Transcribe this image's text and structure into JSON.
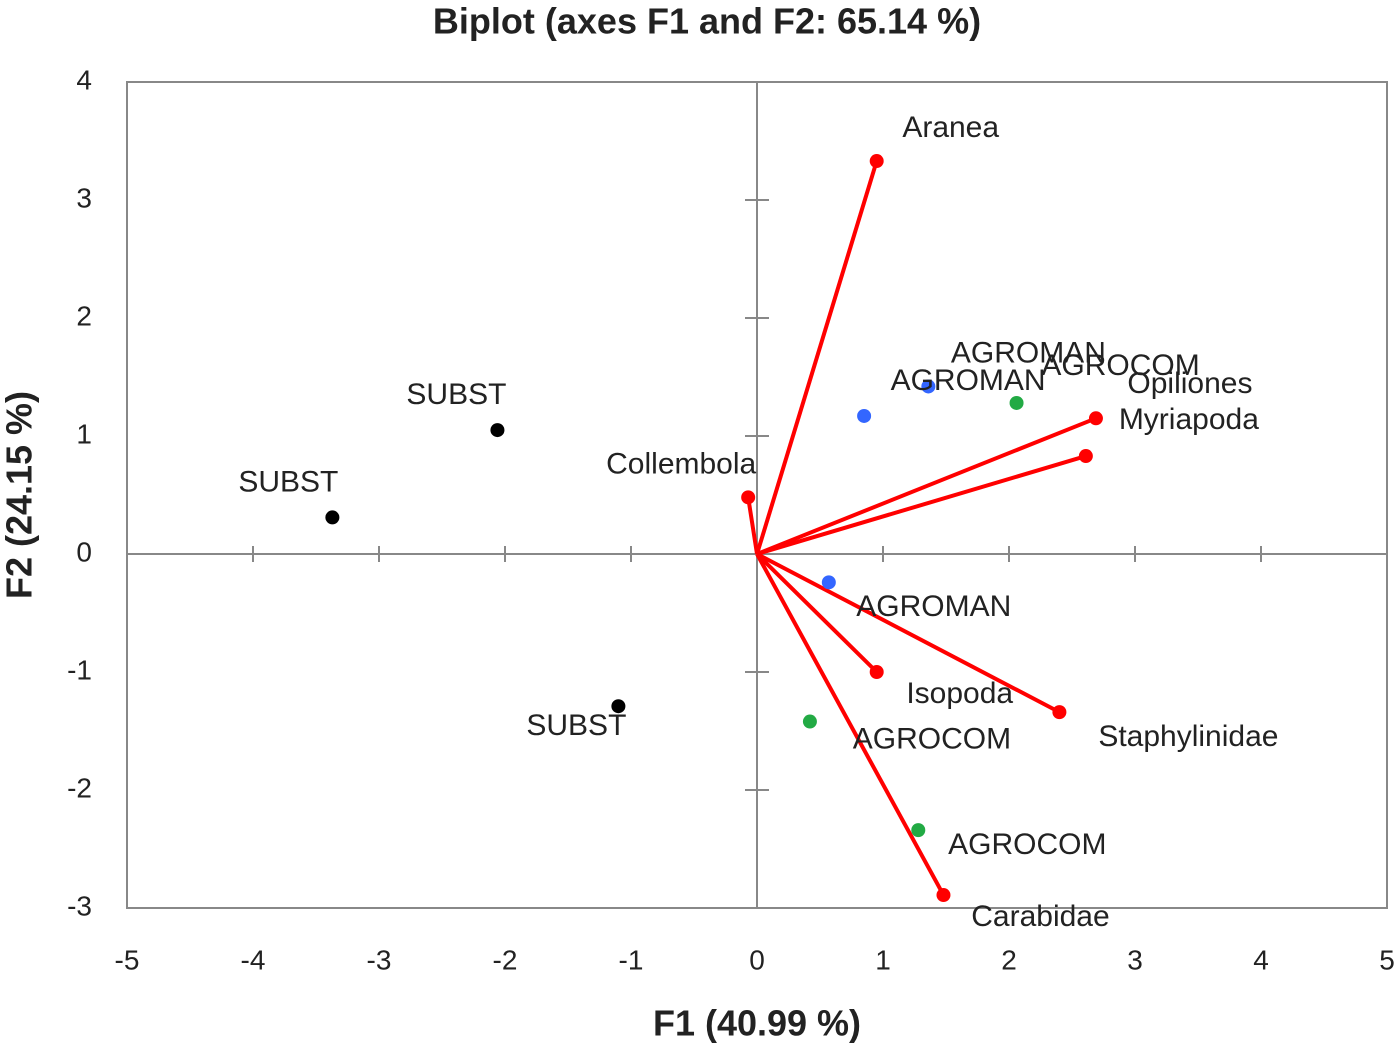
{
  "chart_data": {
    "type": "biplot",
    "title": "Biplot (axes F1 and F2: 65.14 %)",
    "x_label": "F1 (40.99 %)",
    "y_label": "F2 (24.15 %)",
    "xlim": [
      -5,
      5
    ],
    "ylim": [
      -3,
      4
    ],
    "xticks": [
      -5,
      -4,
      -3,
      -2,
      -1,
      0,
      1,
      2,
      3,
      4,
      5
    ],
    "yticks": [
      -3,
      -2,
      -1,
      0,
      1,
      2,
      3,
      4
    ],
    "series": [
      {
        "color": "#000000",
        "labels": [
          "SUBST",
          "SUBST",
          "SUBST"
        ],
        "x": [
          -3.37,
          -2.06,
          -1.1
        ],
        "values": [
          0.31,
          1.05,
          -1.29
        ]
      },
      {
        "color": "#3366ff",
        "labels": [
          "AGROMAN",
          "AGROMAN",
          "AGROMAN"
        ],
        "x": [
          1.36,
          0.85,
          0.57
        ],
        "values": [
          1.42,
          1.17,
          -0.24
        ]
      },
      {
        "color": "#22aa44",
        "labels": [
          "AGROCOM",
          "AGROCOM",
          "AGROCOM"
        ],
        "x": [
          2.06,
          0.42,
          1.28
        ],
        "values": [
          1.28,
          -1.42,
          -2.34
        ]
      },
      {
        "color": "#ff0000",
        "vectors": true,
        "labels": [
          "Aranea",
          "Opiliones",
          "Myriapoda",
          "Collembola",
          "Isopoda",
          "Staphylinidae",
          "Carabidae"
        ],
        "x": [
          0.95,
          2.69,
          2.61,
          -0.07,
          0.95,
          2.4,
          1.48
        ],
        "values": [
          3.33,
          1.15,
          0.83,
          0.48,
          -1.0,
          -1.34,
          -2.89
        ]
      }
    ]
  }
}
